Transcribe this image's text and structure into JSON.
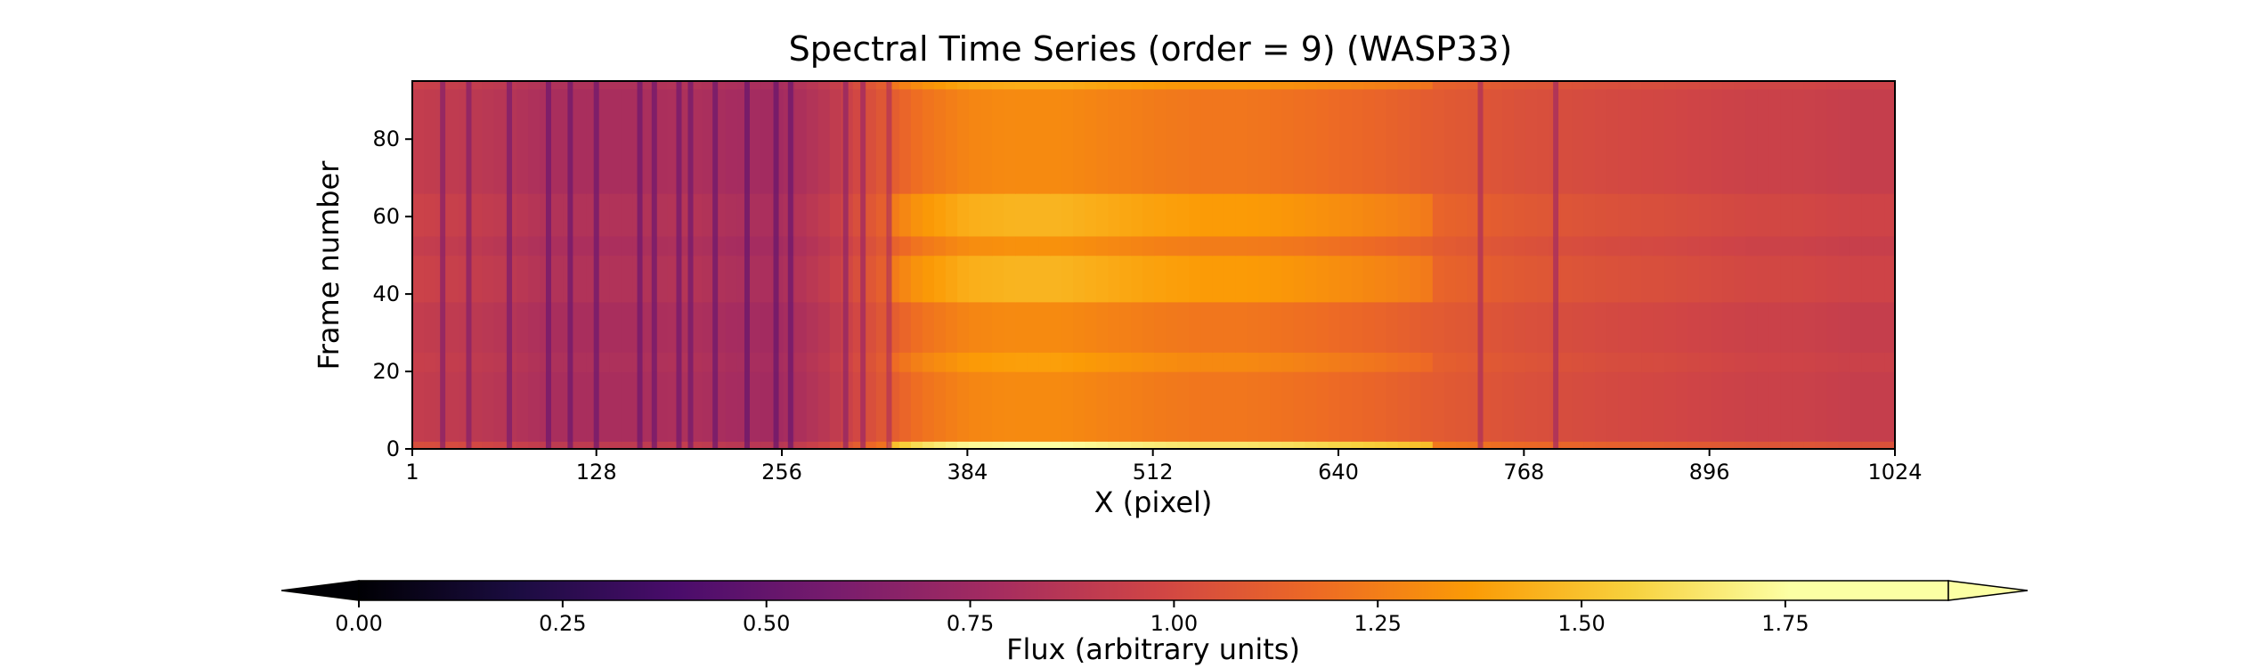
{
  "chart_data": {
    "type": "heatmap",
    "title": "Spectral Time Series (order = 9) (WASP33)",
    "xlabel": "X (pixel)",
    "ylabel": "Frame number",
    "xlim": [
      1,
      1024
    ],
    "ylim": [
      0,
      95
    ],
    "x_ticks": [
      1,
      128,
      256,
      384,
      512,
      640,
      768,
      896,
      1024
    ],
    "y_ticks": [
      0,
      20,
      40,
      60,
      80
    ],
    "colormap": "inferno",
    "colorbar": {
      "label": "Flux (arbitrary units)",
      "range": [
        0.0,
        1.95
      ],
      "extend": "both",
      "ticks": [
        0.0,
        0.25,
        0.5,
        0.75,
        1.0,
        1.25,
        1.5,
        1.75
      ],
      "tick_labels": [
        "0.00",
        "0.25",
        "0.50",
        "0.75",
        "1.00",
        "1.25",
        "1.50",
        "1.75"
      ],
      "orientation": "horizontal"
    },
    "columns": [
      {
        "x": 1,
        "flux": 0.92
      },
      {
        "x": 32,
        "flux": 0.9
      },
      {
        "x": 64,
        "flux": 0.86
      },
      {
        "x": 96,
        "flux": 0.8
      },
      {
        "x": 128,
        "flux": 0.8
      },
      {
        "x": 160,
        "flux": 0.8
      },
      {
        "x": 192,
        "flux": 0.82
      },
      {
        "x": 224,
        "flux": 0.78
      },
      {
        "x": 256,
        "flux": 0.77
      },
      {
        "x": 288,
        "flux": 0.88
      },
      {
        "x": 320,
        "flux": 1.05
      },
      {
        "x": 352,
        "flux": 1.2
      },
      {
        "x": 384,
        "flux": 1.28
      },
      {
        "x": 416,
        "flux": 1.3
      },
      {
        "x": 448,
        "flux": 1.3
      },
      {
        "x": 480,
        "flux": 1.27
      },
      {
        "x": 512,
        "flux": 1.24
      },
      {
        "x": 544,
        "flux": 1.22
      },
      {
        "x": 576,
        "flux": 1.22
      },
      {
        "x": 608,
        "flux": 1.2
      },
      {
        "x": 640,
        "flux": 1.17
      },
      {
        "x": 672,
        "flux": 1.14
      },
      {
        "x": 704,
        "flux": 1.1
      },
      {
        "x": 736,
        "flux": 1.07
      },
      {
        "x": 768,
        "flux": 1.04
      },
      {
        "x": 800,
        "flux": 1.02
      },
      {
        "x": 832,
        "flux": 1.0
      },
      {
        "x": 864,
        "flux": 0.99
      },
      {
        "x": 896,
        "flux": 0.97
      },
      {
        "x": 928,
        "flux": 0.95
      },
      {
        "x": 960,
        "flux": 0.95
      },
      {
        "x": 992,
        "flux": 0.93
      },
      {
        "x": 1024,
        "flux": 0.93
      }
    ],
    "absorption_lines_x": [
      22,
      40,
      68,
      95,
      110,
      128,
      158,
      168,
      185,
      193,
      210,
      232,
      252,
      262,
      300,
      312,
      330,
      738,
      790
    ],
    "frame_modulation": [
      {
        "frame_start": 0,
        "frame_end": 2,
        "factor": 1.35
      },
      {
        "frame_start": 2,
        "frame_end": 20,
        "factor": 1.0
      },
      {
        "frame_start": 20,
        "frame_end": 25,
        "factor": 1.06
      },
      {
        "frame_start": 25,
        "frame_end": 38,
        "factor": 1.0
      },
      {
        "frame_start": 38,
        "frame_end": 50,
        "factor": 1.12
      },
      {
        "frame_start": 50,
        "frame_end": 55,
        "factor": 1.02
      },
      {
        "frame_start": 55,
        "frame_end": 66,
        "factor": 1.12
      },
      {
        "frame_start": 66,
        "frame_end": 93,
        "factor": 1.0
      },
      {
        "frame_start": 93,
        "frame_end": 95,
        "factor": 1.1
      }
    ]
  }
}
